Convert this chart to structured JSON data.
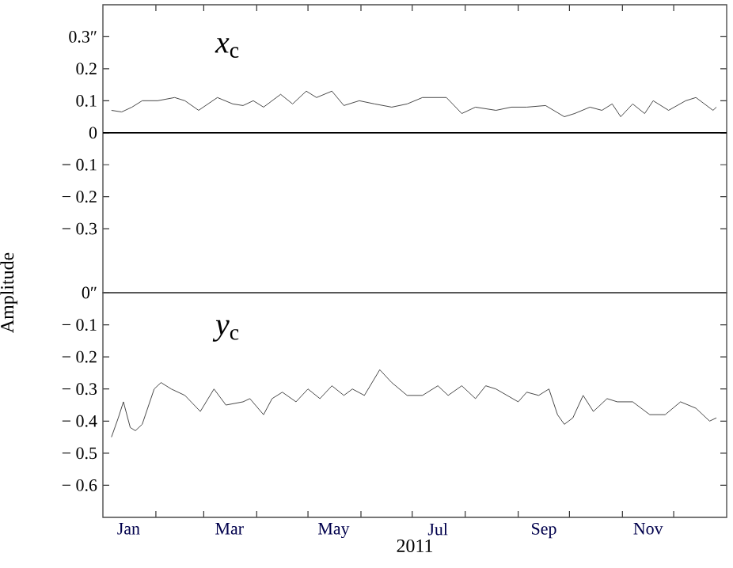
{
  "chart_data": [
    {
      "type": "line",
      "annotations": [
        "*x*$_{c}$"
      ],
      "tick_labels": "y",
      "xlim": [
        "2011-01-01",
        "2012-01-01"
      ],
      "xticks": [
        {
          "value": "2011-02-01",
          "label": null
        },
        {
          "value": "2011-03-01",
          "label": null
        },
        {
          "value": "2011-04-01",
          "label": null
        },
        {
          "value": "2011-05-01",
          "label": null
        },
        {
          "value": "2011-06-01",
          "label": null
        },
        {
          "value": "2011-07-01",
          "label": null
        },
        {
          "value": "2011-08-01",
          "label": null
        },
        {
          "value": "2011-09-01",
          "label": null
        },
        {
          "value": "2011-10-01",
          "label": null
        },
        {
          "value": "2011-11-01",
          "label": null
        },
        {
          "value": "2011-12-01",
          "label": null
        }
      ],
      "ylim": [
        -0.5,
        0.4
      ],
      "yticks": [
        {
          "value": 0.3,
          "label": "0.3″"
        },
        0.2,
        0.1,
        0,
        {
          "value": -0.1,
          "label": "− 0.1"
        },
        {
          "value": -0.2,
          "label": "− 0.2"
        },
        {
          "value": -0.3,
          "label": "− 0.3"
        }
      ],
      "ref_lines": [
        {
          "axis": "y",
          "value": 0,
          "color": "#000000"
        }
      ],
      "series": [
        {
          "color": "#333333",
          "x": [
            "2011-01-06",
            "2011-01-12",
            "2011-01-18",
            "2011-01-24",
            "2011-02-02",
            "2011-02-12",
            "2011-02-18",
            "2011-02-26",
            "2011-03-09",
            "2011-03-18",
            "2011-03-24",
            "2011-03-30",
            "2011-04-05",
            "2011-04-15",
            "2011-04-22",
            "2011-04-30",
            "2011-05-06",
            "2011-05-15",
            "2011-05-22",
            "2011-05-31",
            "2011-06-09",
            "2011-06-19",
            "2011-06-28",
            "2011-07-07",
            "2011-07-21",
            "2011-07-30",
            "2011-08-07",
            "2011-08-19",
            "2011-08-28",
            "2011-09-06",
            "2011-09-17",
            "2011-09-28",
            "2011-10-04",
            "2011-10-13",
            "2011-10-20",
            "2011-10-26",
            "2011-10-31",
            "2011-11-07",
            "2011-11-14",
            "2011-11-19",
            "2011-11-28",
            "2011-12-08",
            "2011-12-14",
            "2011-12-24",
            "2011-12-26"
          ],
          "values": [
            0.07,
            0.065,
            0.08,
            0.1,
            0.1,
            0.11,
            0.1,
            0.07,
            0.11,
            0.09,
            0.085,
            0.1,
            0.08,
            0.12,
            0.09,
            0.13,
            0.11,
            0.13,
            0.085,
            0.1,
            0.09,
            0.08,
            0.09,
            0.11,
            0.11,
            0.06,
            0.08,
            0.07,
            0.08,
            0.08,
            0.085,
            0.05,
            0.06,
            0.08,
            0.07,
            0.09,
            0.05,
            0.09,
            0.06,
            0.1,
            0.07,
            0.1,
            0.11,
            0.07,
            0.08
          ]
        }
      ]
    },
    {
      "type": "line",
      "annotations": [
        "*y*$_{c}$"
      ],
      "xlabel": "2011",
      "ylabel": "Amplitude",
      "xlim": [
        "2011-01-01",
        "2012-01-01"
      ],
      "xticks": [
        {
          "value": "2011-01-16",
          "label": "Jan"
        },
        {
          "value": "2011-02-01",
          "label": null
        },
        {
          "value": "2011-03-01",
          "label": null
        },
        {
          "value": "2011-03-16",
          "label": "Mar"
        },
        {
          "value": "2011-04-01",
          "label": null
        },
        {
          "value": "2011-05-01",
          "label": null
        },
        {
          "value": "2011-05-16",
          "label": "May"
        },
        {
          "value": "2011-06-01",
          "label": null
        },
        {
          "value": "2011-07-01",
          "label": null
        },
        {
          "value": "2011-07-16",
          "label": "Jul"
        },
        {
          "value": "2011-08-01",
          "label": null
        },
        {
          "value": "2011-09-01",
          "label": null
        },
        {
          "value": "2011-09-16",
          "label": "Sep"
        },
        {
          "value": "2011-10-01",
          "label": null
        },
        {
          "value": "2011-11-01",
          "label": null
        },
        {
          "value": "2011-11-16",
          "label": "Nov"
        },
        {
          "value": "2011-12-01",
          "label": null
        }
      ],
      "ylim": [
        -0.7,
        0
      ],
      "yticks": [
        {
          "value": 0,
          "label": "0″"
        },
        {
          "value": -0.1,
          "label": "− 0.1"
        },
        {
          "value": -0.2,
          "label": "− 0.2"
        },
        {
          "value": -0.3,
          "label": "− 0.3"
        },
        {
          "value": -0.4,
          "label": "− 0.4"
        },
        {
          "value": -0.5,
          "label": "− 0.5"
        },
        {
          "value": -0.6,
          "label": "− 0.6"
        }
      ],
      "series": [
        {
          "color": "#333333",
          "x": [
            "2011-01-06",
            "2011-01-10",
            "2011-01-13",
            "2011-01-17",
            "2011-01-20",
            "2011-01-24",
            "2011-01-31",
            "2011-02-04",
            "2011-02-10",
            "2011-02-18",
            "2011-02-27",
            "2011-03-07",
            "2011-03-14",
            "2011-03-24",
            "2011-03-28",
            "2011-04-05",
            "2011-04-10",
            "2011-04-16",
            "2011-04-24",
            "2011-05-01",
            "2011-05-08",
            "2011-05-15",
            "2011-05-22",
            "2011-05-27",
            "2011-06-03",
            "2011-06-12",
            "2011-06-19",
            "2011-06-28",
            "2011-07-07",
            "2011-07-16",
            "2011-07-22",
            "2011-07-30",
            "2011-08-07",
            "2011-08-13",
            "2011-08-19",
            "2011-09-01",
            "2011-09-06",
            "2011-09-13",
            "2011-09-19",
            "2011-09-24",
            "2011-09-28",
            "2011-10-03",
            "2011-10-09",
            "2011-10-15",
            "2011-10-23",
            "2011-10-29",
            "2011-11-07",
            "2011-11-17",
            "2011-11-26",
            "2011-12-05",
            "2011-12-14",
            "2011-12-22",
            "2011-12-26"
          ],
          "values": [
            -0.45,
            -0.39,
            -0.34,
            -0.42,
            -0.43,
            -0.41,
            -0.3,
            -0.28,
            -0.3,
            -0.32,
            -0.37,
            -0.3,
            -0.35,
            -0.34,
            -0.33,
            -0.38,
            -0.33,
            -0.31,
            -0.34,
            -0.3,
            -0.33,
            -0.29,
            -0.32,
            -0.3,
            -0.32,
            -0.24,
            -0.28,
            -0.32,
            -0.32,
            -0.29,
            -0.32,
            -0.29,
            -0.33,
            -0.29,
            -0.3,
            -0.34,
            -0.31,
            -0.32,
            -0.3,
            -0.38,
            -0.41,
            -0.39,
            -0.32,
            -0.37,
            -0.33,
            -0.34,
            -0.34,
            -0.38,
            -0.38,
            -0.34,
            -0.36,
            -0.4,
            -0.39
          ]
        }
      ]
    }
  ]
}
